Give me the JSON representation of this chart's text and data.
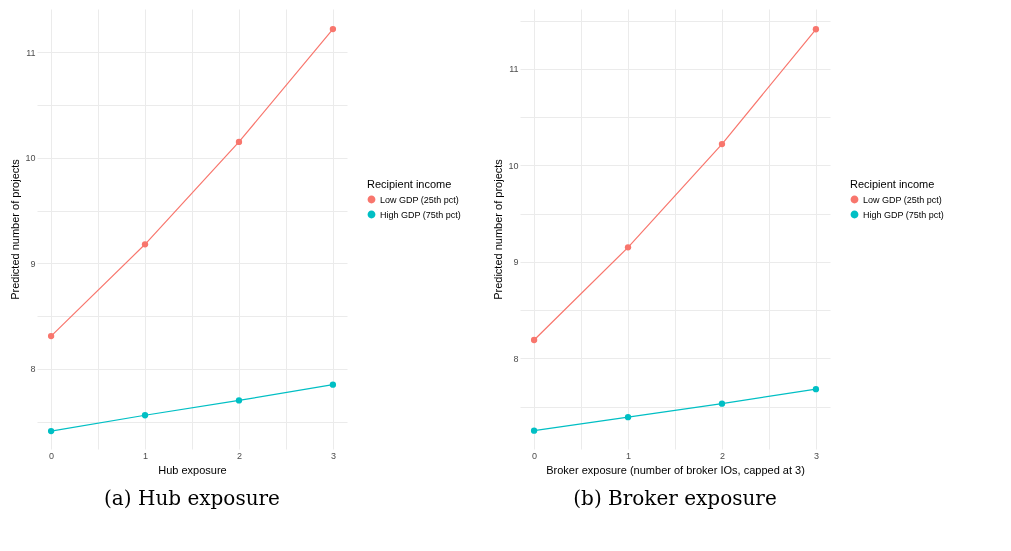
{
  "chart_data": [
    {
      "type": "line",
      "xlabel": "Hub exposure",
      "ylabel": "Predicted number of projects",
      "legend_title": "Recipient income",
      "annotations": [
        "(a) Hub exposure"
      ],
      "x": [
        0,
        1,
        2,
        3
      ],
      "series": [
        {
          "name": "Low GDP (25th pct)",
          "color": "#f8766d",
          "values": [
            8.31,
            9.18,
            10.15,
            11.22
          ]
        },
        {
          "name": "High GDP (75th pct)",
          "color": "#00bfc4",
          "values": [
            7.41,
            7.56,
            7.7,
            7.85
          ]
        }
      ],
      "xlim": [
        -0.15,
        3.15
      ],
      "ylim": [
        7.24,
        11.41
      ],
      "xticks": [
        0,
        {
          "value": 0.5,
          "label": null
        },
        1,
        {
          "value": 1.5,
          "label": null
        },
        2,
        {
          "value": 2.5,
          "label": null
        },
        3
      ],
      "yticks": [
        {
          "value": 7.5,
          "label": null
        },
        8,
        {
          "value": 8.5,
          "label": null
        },
        9,
        {
          "value": 9.5,
          "label": null
        },
        10,
        {
          "value": 10.5,
          "label": null
        },
        11
      ],
      "grid": true,
      "legend": "right",
      "marker": "circle"
    },
    {
      "type": "line",
      "xlabel": "Broker exposure (number of broker IOs, capped at 3)",
      "ylabel": "Predicted number of projects",
      "legend_title": "Recipient income",
      "annotations": [
        "(b) Broker exposure"
      ],
      "x": [
        0,
        1,
        2,
        3
      ],
      "series": [
        {
          "name": "Low GDP (25th pct)",
          "color": "#f8766d",
          "values": [
            8.19,
            9.15,
            10.22,
            11.41
          ]
        },
        {
          "name": "High GDP (75th pct)",
          "color": "#00bfc4",
          "values": [
            7.25,
            7.39,
            7.53,
            7.68
          ]
        }
      ],
      "xlim": [
        -0.15,
        3.15
      ],
      "ylim": [
        7.06,
        11.62
      ],
      "xticks": [
        0,
        {
          "value": 0.5,
          "label": null
        },
        1,
        {
          "value": 1.5,
          "label": null
        },
        2,
        {
          "value": 2.5,
          "label": null
        },
        3
      ],
      "yticks": [
        {
          "value": 7.5,
          "label": null
        },
        8,
        {
          "value": 8.5,
          "label": null
        },
        9,
        {
          "value": 9.5,
          "label": null
        },
        10,
        {
          "value": 10.5,
          "label": null
        },
        11,
        {
          "value": 11.5,
          "label": null
        }
      ],
      "grid": true,
      "legend": "right",
      "marker": "circle"
    }
  ]
}
